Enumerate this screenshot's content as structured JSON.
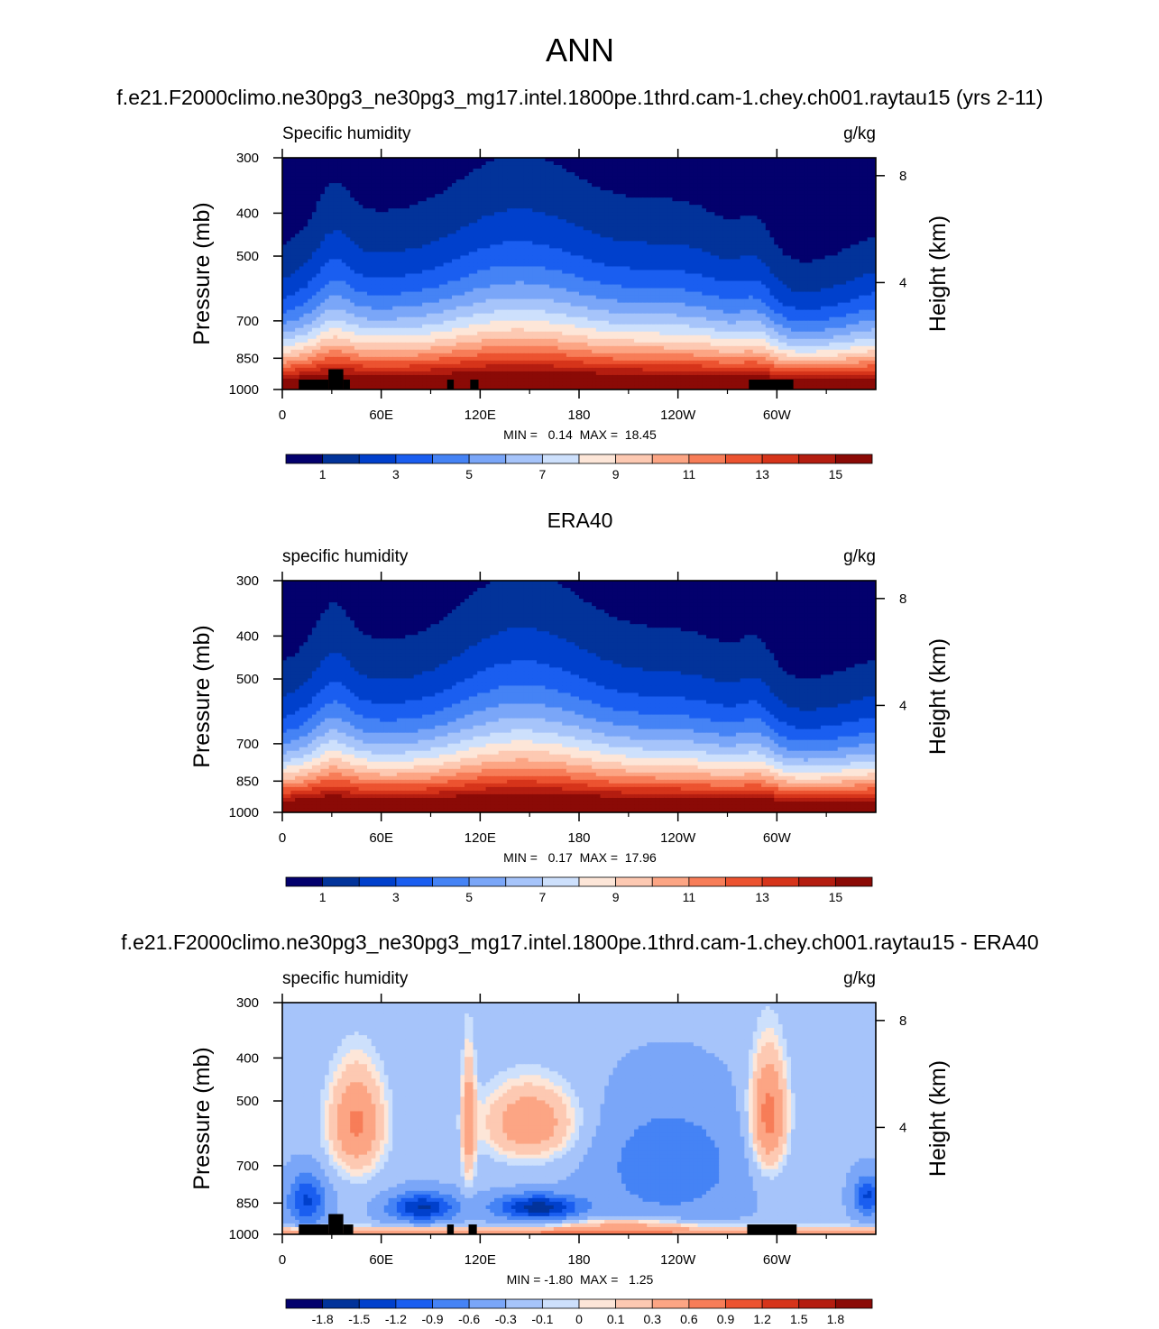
{
  "page": {
    "main_title": "ANN"
  },
  "panels": [
    {
      "case_title": "f.e21.F2000climo.ne30pg3_ne30pg3_mg17.intel.1800pe.1thrd.cam-1.chey.ch001.raytau15 (yrs 2-11)",
      "variable": "Specific humidity",
      "units": "g/kg",
      "stats": "MIN =   0.14  MAX =  18.45",
      "kind": "model"
    },
    {
      "case_title": "ERA40",
      "variable": "specific humidity",
      "units": "g/kg",
      "stats": "MIN =   0.17  MAX =  17.96",
      "kind": "obs"
    },
    {
      "case_title": "f.e21.F2000climo.ne30pg3_ne30pg3_mg17.intel.1800pe.1thrd.cam-1.chey.ch001.raytau15 - ERA40",
      "variable": "specific humidity",
      "units": "g/kg",
      "stats": "MIN = -1.80  MAX =   1.25",
      "kind": "diff"
    }
  ],
  "chart_data": [
    {
      "type": "heatmap",
      "title": "f.e21.F2000climo.ne30pg3_ne30pg3_mg17.intel.1800pe.1thrd.cam-1.chey.ch001.raytau15 (yrs 2-11)",
      "ylabel": "Pressure (mb)",
      "y2label": "Height (km)",
      "x_ticks": [
        "0",
        "60E",
        "120E",
        "180",
        "120W",
        "60W"
      ],
      "y_ticks": [
        "300",
        "400",
        "500",
        "700",
        "850",
        "1000"
      ],
      "y2_ticks": [
        "8",
        "4"
      ],
      "xlim": [
        0,
        360
      ],
      "ylim": [
        1000,
        300
      ],
      "colorbar_labels": [
        "1",
        "3",
        "5",
        "7",
        "9",
        "11",
        "13",
        "15"
      ],
      "colorbar_colors": [
        "#03006d",
        "#02339a",
        "#0040cc",
        "#1a5ef0",
        "#4583f5",
        "#7aa6f8",
        "#a6c4fa",
        "#cde0fc",
        "#fde6d8",
        "#fdc9b2",
        "#fca584",
        "#f77d58",
        "#ec5330",
        "#d6341a",
        "#b41d10",
        "#8b0a06"
      ],
      "min": 0.14,
      "max": 18.45,
      "units": "g/kg"
    },
    {
      "type": "heatmap",
      "title": "ERA40",
      "ylabel": "Pressure (mb)",
      "y2label": "Height (km)",
      "x_ticks": [
        "0",
        "60E",
        "120E",
        "180",
        "120W",
        "60W"
      ],
      "y_ticks": [
        "300",
        "400",
        "500",
        "700",
        "850",
        "1000"
      ],
      "y2_ticks": [
        "8",
        "4"
      ],
      "xlim": [
        0,
        360
      ],
      "ylim": [
        1000,
        300
      ],
      "colorbar_labels": [
        "1",
        "3",
        "5",
        "7",
        "9",
        "11",
        "13",
        "15"
      ],
      "colorbar_colors": [
        "#03006d",
        "#02339a",
        "#0040cc",
        "#1a5ef0",
        "#4583f5",
        "#7aa6f8",
        "#a6c4fa",
        "#cde0fc",
        "#fde6d8",
        "#fdc9b2",
        "#fca584",
        "#f77d58",
        "#ec5330",
        "#d6341a",
        "#b41d10",
        "#8b0a06"
      ],
      "min": 0.17,
      "max": 17.96,
      "units": "g/kg"
    },
    {
      "type": "heatmap",
      "title": "f.e21.F2000climo.ne30pg3_ne30pg3_mg17.intel.1800pe.1thrd.cam-1.chey.ch001.raytau15 - ERA40",
      "ylabel": "Pressure (mb)",
      "y2label": "Height (km)",
      "x_ticks": [
        "0",
        "60E",
        "120E",
        "180",
        "120W",
        "60W"
      ],
      "y_ticks": [
        "300",
        "400",
        "500",
        "700",
        "850",
        "1000"
      ],
      "y2_ticks": [
        "8",
        "4"
      ],
      "xlim": [
        0,
        360
      ],
      "ylim": [
        1000,
        300
      ],
      "colorbar_labels": [
        "-1.8",
        "-1.5",
        "-1.2",
        "-0.9",
        "-0.6",
        "-0.3",
        "-0.1",
        "0",
        "0.1",
        "0.3",
        "0.6",
        "0.9",
        "1.2",
        "1.5",
        "1.8"
      ],
      "colorbar_colors": [
        "#03006d",
        "#02339a",
        "#0040cc",
        "#1a5ef0",
        "#4583f5",
        "#7aa6f8",
        "#a6c4fa",
        "#cde0fc",
        "#fde6d8",
        "#fdc9b2",
        "#fca584",
        "#f77d58",
        "#ec5330",
        "#d6341a",
        "#b41d10",
        "#8b0a06"
      ],
      "min": -1.8,
      "max": 1.25,
      "units": "g/kg"
    }
  ]
}
